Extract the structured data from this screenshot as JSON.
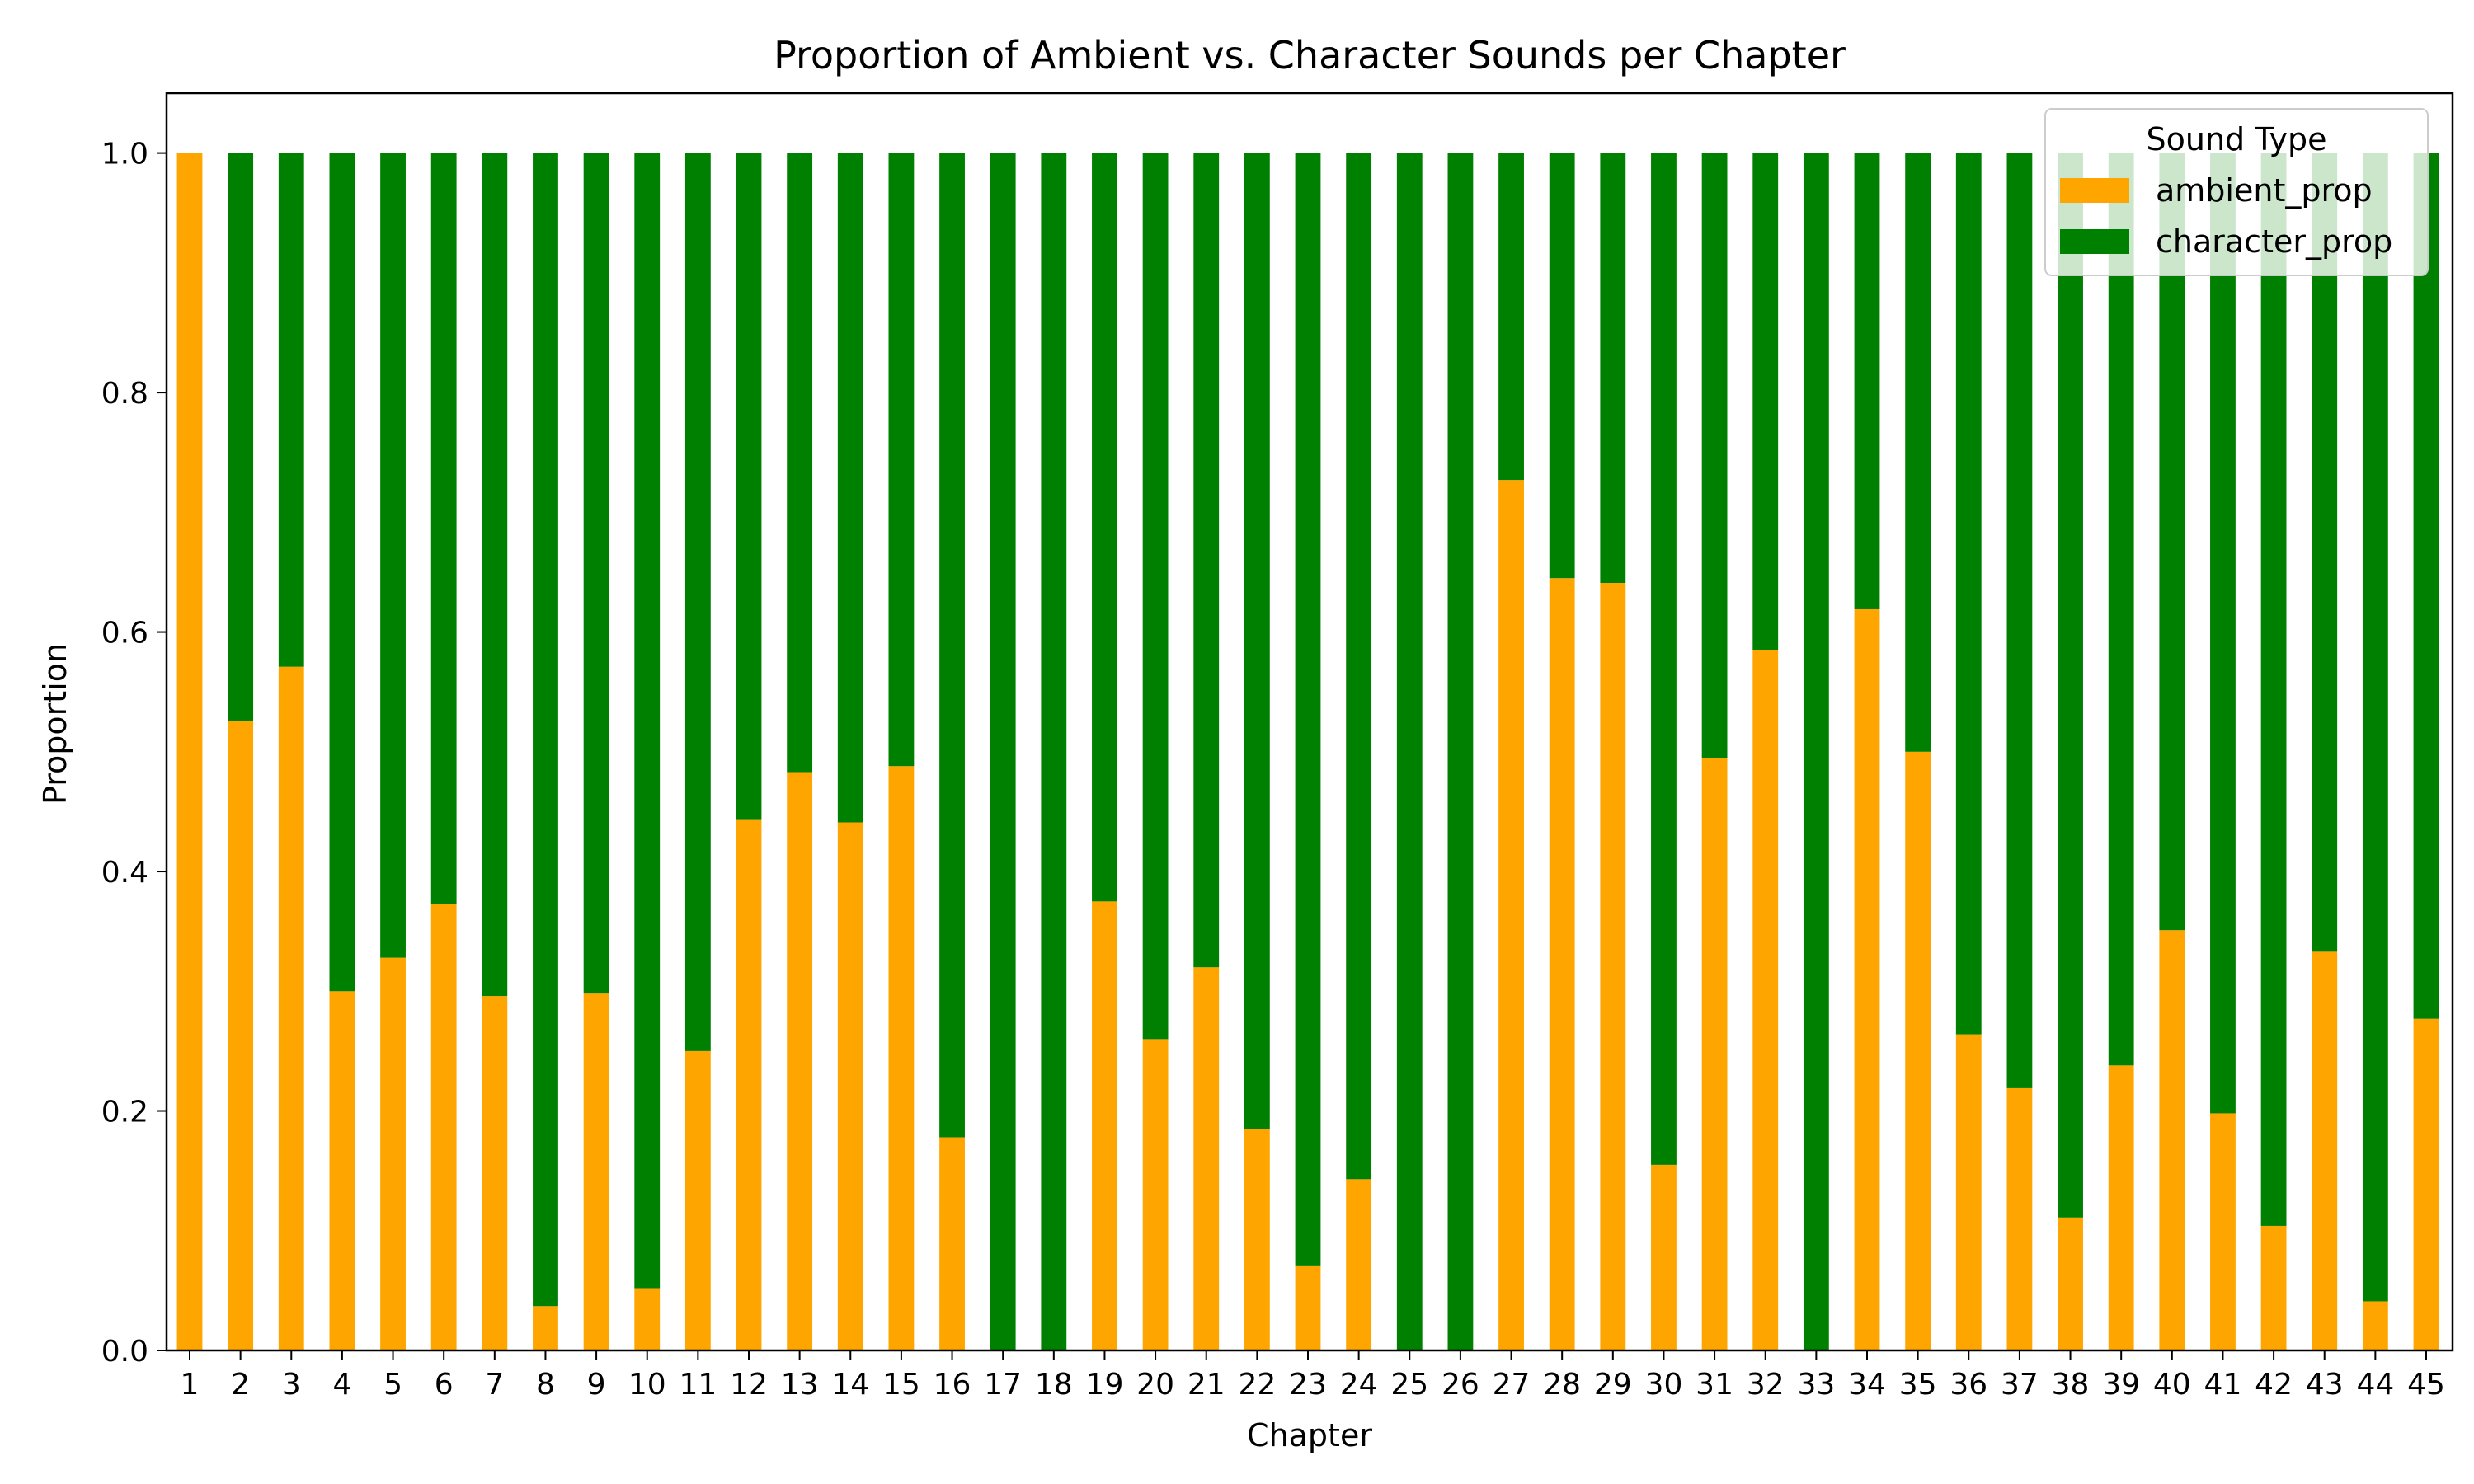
{
  "chart_data": {
    "type": "bar",
    "stacked": true,
    "title": "Proportion of Ambient vs. Character Sounds per Chapter",
    "xlabel": "Chapter",
    "ylabel": "Proportion",
    "ylim": [
      0,
      1.05
    ],
    "yticks": [
      "0.0",
      "0.2",
      "0.4",
      "0.6",
      "0.8",
      "1.0"
    ],
    "categories": [
      "1",
      "2",
      "3",
      "4",
      "5",
      "6",
      "7",
      "8",
      "9",
      "10",
      "11",
      "12",
      "13",
      "14",
      "15",
      "16",
      "17",
      "18",
      "19",
      "20",
      "21",
      "22",
      "23",
      "24",
      "25",
      "26",
      "27",
      "28",
      "29",
      "30",
      "31",
      "32",
      "33",
      "34",
      "35",
      "36",
      "37",
      "38",
      "39",
      "40",
      "41",
      "42",
      "43",
      "44",
      "45"
    ],
    "series": [
      {
        "name": "ambient_prop",
        "color": "#ffa500",
        "values": [
          1.0,
          0.526,
          0.571,
          0.3,
          0.328,
          0.373,
          0.296,
          0.037,
          0.298,
          0.052,
          0.25,
          0.443,
          0.483,
          0.441,
          0.488,
          0.178,
          0.0,
          0.0,
          0.375,
          0.26,
          0.32,
          0.185,
          0.071,
          0.143,
          0.0,
          0.0,
          0.727,
          0.645,
          0.641,
          0.155,
          0.495,
          0.585,
          0.0,
          0.619,
          0.5,
          0.264,
          0.219,
          0.111,
          0.238,
          0.351,
          0.198,
          0.104,
          0.333,
          0.041,
          0.277
        ]
      },
      {
        "name": "character_prop",
        "color": "#008000",
        "values": [
          0.0,
          0.474,
          0.429,
          0.7,
          0.672,
          0.627,
          0.704,
          0.963,
          0.702,
          0.948,
          0.75,
          0.557,
          0.517,
          0.559,
          0.512,
          0.822,
          1.0,
          1.0,
          0.625,
          0.74,
          0.68,
          0.815,
          0.929,
          0.857,
          1.0,
          1.0,
          0.273,
          0.355,
          0.359,
          0.845,
          0.505,
          0.415,
          1.0,
          0.381,
          0.5,
          0.736,
          0.781,
          0.889,
          0.762,
          0.649,
          0.802,
          0.896,
          0.667,
          0.959,
          0.723
        ]
      }
    ],
    "legend": {
      "title": "Sound Type",
      "position": "top-right"
    },
    "grid": false
  }
}
